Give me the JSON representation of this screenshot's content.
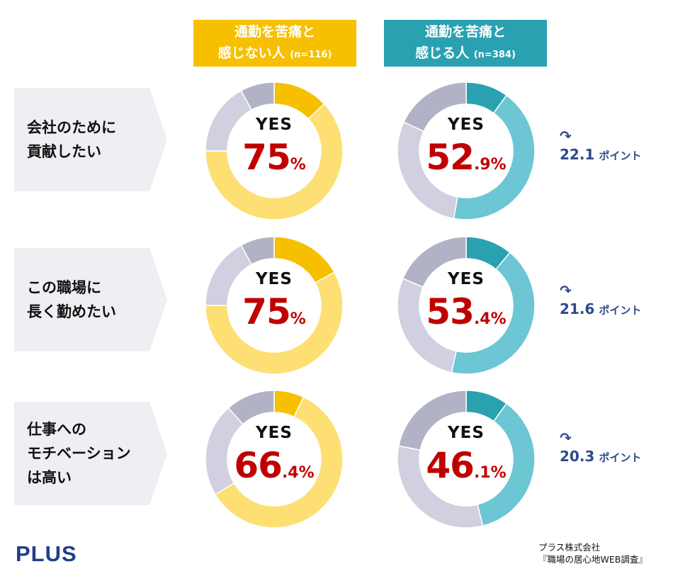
{
  "colors": {
    "group1_accent": "#f6c000",
    "group1_main": "#fddf73",
    "group2_accent": "#2aa1b1",
    "group2_main": "#6cc6d4",
    "other_light": "#d0d0e0",
    "other_dark": "#b2b2c6",
    "yes_text": "#c00000",
    "diff_text": "#2e4a8c"
  },
  "groups": [
    {
      "line1": "通勤を苦痛と",
      "line2": "感じない人",
      "n": "(n=116)"
    },
    {
      "line1": "通勤を苦痛と",
      "line2": "感じる人",
      "n": "(n=384)"
    }
  ],
  "rows": [
    {
      "label": "会社のために\n貢献したい",
      "diff_value": "22.1",
      "diff_unit": "ポイント"
    },
    {
      "label": "この職場に\n長く勤めたい",
      "diff_value": "21.6",
      "diff_unit": "ポイント"
    },
    {
      "label": "仕事への\nモチベーション\nは高い",
      "diff_value": "20.3",
      "diff_unit": "ポイント"
    }
  ],
  "yes_label": "YES",
  "arrow_icon": "↷",
  "chart_data": [
    {
      "type": "pie",
      "group": 0,
      "row": 0,
      "yes_percent": 75,
      "label_int": "75",
      "label_dec": "%",
      "slices": [
        {
          "name": "top",
          "value": 13
        },
        {
          "name": "yes-main",
          "value": 62
        },
        {
          "name": "other-light",
          "value": 17
        },
        {
          "name": "other-dark",
          "value": 8
        }
      ]
    },
    {
      "type": "pie",
      "group": 1,
      "row": 0,
      "yes_percent": 52.9,
      "label_int": "52",
      "label_dec": ".9%",
      "slices": [
        {
          "name": "top",
          "value": 10
        },
        {
          "name": "yes-main",
          "value": 42.9
        },
        {
          "name": "other-light",
          "value": 29
        },
        {
          "name": "other-dark",
          "value": 18.1
        }
      ]
    },
    {
      "type": "pie",
      "group": 0,
      "row": 1,
      "yes_percent": 75,
      "label_int": "75",
      "label_dec": "%",
      "slices": [
        {
          "name": "top",
          "value": 17
        },
        {
          "name": "yes-main",
          "value": 58
        },
        {
          "name": "other-light",
          "value": 17
        },
        {
          "name": "other-dark",
          "value": 8
        }
      ]
    },
    {
      "type": "pie",
      "group": 1,
      "row": 1,
      "yes_percent": 53.4,
      "label_int": "53",
      "label_dec": ".4%",
      "slices": [
        {
          "name": "top",
          "value": 11
        },
        {
          "name": "yes-main",
          "value": 42.4
        },
        {
          "name": "other-light",
          "value": 28
        },
        {
          "name": "other-dark",
          "value": 18.6
        }
      ]
    },
    {
      "type": "pie",
      "group": 0,
      "row": 2,
      "yes_percent": 66.4,
      "label_int": "66",
      "label_dec": ".4%",
      "slices": [
        {
          "name": "top",
          "value": 7
        },
        {
          "name": "yes-main",
          "value": 59.4
        },
        {
          "name": "other-light",
          "value": 22
        },
        {
          "name": "other-dark",
          "value": 11.6
        }
      ]
    },
    {
      "type": "pie",
      "group": 1,
      "row": 2,
      "yes_percent": 46.1,
      "label_int": "46",
      "label_dec": ".1%",
      "slices": [
        {
          "name": "top",
          "value": 10
        },
        {
          "name": "yes-main",
          "value": 36.1
        },
        {
          "name": "other-light",
          "value": 32
        },
        {
          "name": "other-dark",
          "value": 21.9
        }
      ]
    }
  ],
  "logo": "PLUS",
  "source": {
    "line1": "プラス株式会社",
    "line2": "『職場の居心地WEB調査』"
  }
}
